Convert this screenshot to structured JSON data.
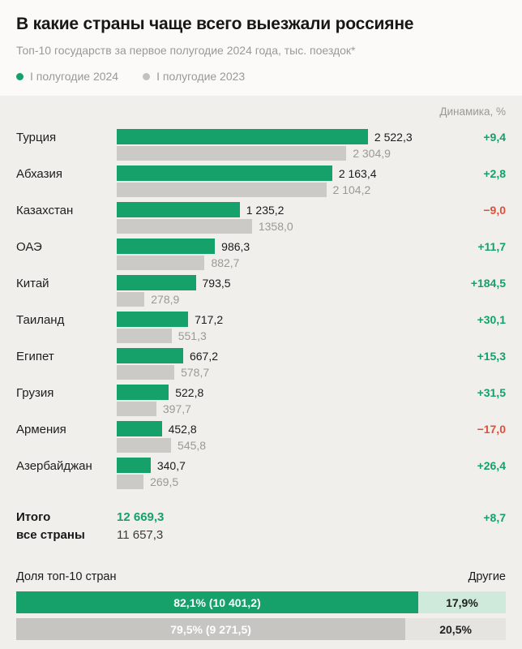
{
  "colors": {
    "green": "#15a169",
    "red": "#e0503a",
    "bar_gray": "#cbcac7",
    "light_green": "#cfe9da",
    "light_gray": "#e5e4e0"
  },
  "header": {
    "title": "В какие страны чаще всего выезжали россияне",
    "subtitle": "Топ-10 государств за первое полугодие 2024 года, тыс. поездок*",
    "legend_2024": "I полугодие 2024",
    "legend_2023": "I полугодие 2023"
  },
  "chart_data": {
    "type": "bar",
    "orientation": "horizontal",
    "unit": "тыс. поездок",
    "dynamics_header": "Динамика, %",
    "series": [
      "I полугодие 2024",
      "I полугодие 2023"
    ],
    "max_value": 2522.3,
    "rows": [
      {
        "country": "Турция",
        "value_2024": 2522.3,
        "value_2023": 2304.9,
        "label_2024": "2 522,3",
        "label_2023": "2 304,9",
        "dynamics": "+9,4",
        "trend": "up"
      },
      {
        "country": "Абхазия",
        "value_2024": 2163.4,
        "value_2023": 2104.2,
        "label_2024": "2 163,4",
        "label_2023": "2 104,2",
        "dynamics": "+2,8",
        "trend": "up"
      },
      {
        "country": "Казахстан",
        "value_2024": 1235.2,
        "value_2023": 1358.0,
        "label_2024": "1 235,2",
        "label_2023": "1358,0",
        "dynamics": "−9,0",
        "trend": "down"
      },
      {
        "country": "ОАЭ",
        "value_2024": 986.3,
        "value_2023": 882.7,
        "label_2024": "986,3",
        "label_2023": "882,7",
        "dynamics": "+11,7",
        "trend": "up"
      },
      {
        "country": "Китай",
        "value_2024": 793.5,
        "value_2023": 278.9,
        "label_2024": "793,5",
        "label_2023": "278,9",
        "dynamics": "+184,5",
        "trend": "up"
      },
      {
        "country": "Таиланд",
        "value_2024": 717.2,
        "value_2023": 551.3,
        "label_2024": "717,2",
        "label_2023": "551,3",
        "dynamics": "+30,1",
        "trend": "up"
      },
      {
        "country": "Египет",
        "value_2024": 667.2,
        "value_2023": 578.7,
        "label_2024": "667,2",
        "label_2023": "578,7",
        "dynamics": "+15,3",
        "trend": "up"
      },
      {
        "country": "Грузия",
        "value_2024": 522.8,
        "value_2023": 397.7,
        "label_2024": "522,8",
        "label_2023": "397,7",
        "dynamics": "+31,5",
        "trend": "up"
      },
      {
        "country": "Армения",
        "value_2024": 452.8,
        "value_2023": 545.8,
        "label_2024": "452,8",
        "label_2023": "545,8",
        "dynamics": "−17,0",
        "trend": "down"
      },
      {
        "country": "Азербайджан",
        "value_2024": 340.7,
        "value_2023": 269.5,
        "label_2024": "340,7",
        "label_2023": "269,5",
        "dynamics": "+26,4",
        "trend": "up"
      }
    ],
    "total": {
      "label_line1": "Итого",
      "label_line2": "все страны",
      "value_2024": "12 669,3",
      "value_2023": "11 657,3",
      "dynamics": "+8,7"
    },
    "share": {
      "left_title": "Доля топ-10 стран",
      "right_title": "Другие",
      "bars": [
        {
          "kind": "green",
          "main_pct": 82.1,
          "main_label": "82,1% (10 401,2)",
          "rest_label": "17,9%"
        },
        {
          "kind": "gray",
          "main_pct": 79.5,
          "main_label": "79,5% (9 271,5)",
          "rest_label": "20,5%"
        }
      ]
    }
  }
}
